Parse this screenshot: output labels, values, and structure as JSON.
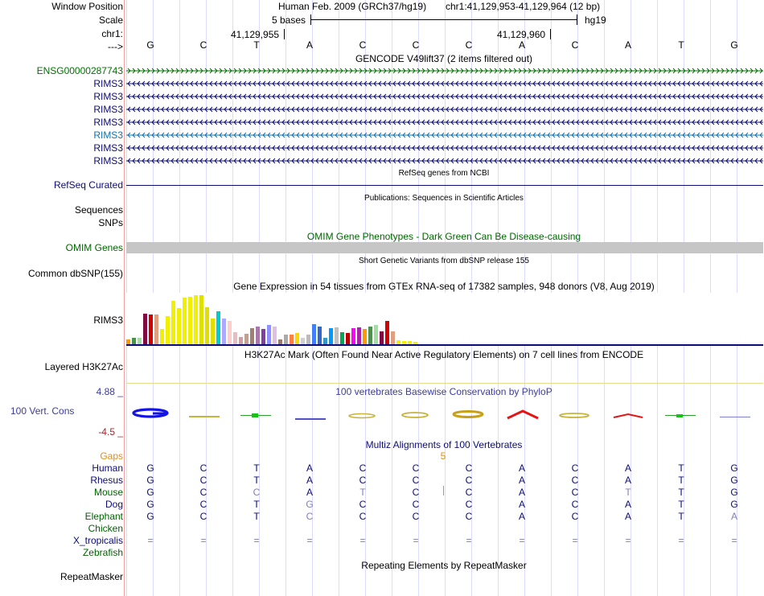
{
  "colors": {
    "label_default": "#000000",
    "gene_green": "#007300",
    "rims_navy": "#0c0c78",
    "rims_highlight": "#0c74b4",
    "refseq_navy": "#0c0c78",
    "omim_green": "#006600",
    "phylop_blue": "#3c3ca0",
    "phylop_red": "#a0282d",
    "gaps_orange": "#e68c14",
    "tissue_palette": [
      "#ff9900",
      "#4f8f4f",
      "#a0e0a0",
      "#820a42",
      "#d70000",
      "#e0a080",
      "#f0f000",
      "#f0f000",
      "#f0f000",
      "#f0f000",
      "#f0f000",
      "#f0f000",
      "#f0f000",
      "#e0e000",
      "#e0e000",
      "#e0e000",
      "#00cccc",
      "#aaaaff",
      "#ffcccc",
      "#e0c0c0",
      "#d0a0a0",
      "#c0a090",
      "#a08070",
      "#aa77aa",
      "#8040a0",
      "#9090ff",
      "#e0c0e0",
      "#9a7a6a",
      "#aaaaaa",
      "#ff8040",
      "#ffd700",
      "#d0d0d0",
      "#bbbbbb",
      "#4080ff",
      "#3366cc",
      "#3399cc",
      "#0099ff",
      "#c0c0c0",
      "#00aa55",
      "#bb0000",
      "#ff00ff",
      "#aa22aa"
    ]
  },
  "header": {
    "window_position_label": "Window Position",
    "scale_label": "Scale",
    "chr_label": "chr1:",
    "strand_label": "--->",
    "assembly_text": "Human Feb. 2009 (GRCh37/hg19)",
    "position_text": "chr1:41,129,953-41,129,964 (12 bp)",
    "scale_text": "5 bases",
    "hg19_text": "hg19",
    "coord1": "41,129,955",
    "coord2": "41,129,960",
    "sequence": [
      "G",
      "C",
      "T",
      "A",
      "C",
      "C",
      "C",
      "A",
      "C",
      "A",
      "T",
      "G"
    ]
  },
  "gencode": {
    "title": "GENCODE V49lift37 (2 items filtered out)",
    "tracks": [
      {
        "label": "ENSG00000287743",
        "strand": "+"
      },
      {
        "label": "RIMS3",
        "strand": "-"
      },
      {
        "label": "RIMS3",
        "strand": "-"
      },
      {
        "label": "RIMS3",
        "strand": "-"
      },
      {
        "label": "RIMS3",
        "strand": "-"
      },
      {
        "label": "RIMS3",
        "strand": "-",
        "highlight": true
      },
      {
        "label": "RIMS3",
        "strand": "-"
      },
      {
        "label": "RIMS3",
        "strand": "-"
      }
    ]
  },
  "refseq": {
    "title": "RefSeq genes from NCBI",
    "label": "RefSeq Curated"
  },
  "publications": {
    "title": "Publications: Sequences in Scientific Articles",
    "label1": "Sequences",
    "label2": "SNPs"
  },
  "omim": {
    "title": "OMIM Gene Phenotypes - Dark Green Can Be Disease-causing",
    "label": "OMIM Genes"
  },
  "dbsnp": {
    "title": "Short Genetic Variants from dbSNP release 155",
    "label": "Common dbSNP(155)"
  },
  "gtex": {
    "title": "Gene Expression in 54 tissues from GTEx RNA-seq of 17382 samples, 948 donors (V8, Aug 2019)",
    "label": "RIMS3",
    "bar_levels": [
      0.1,
      0.12,
      0.12,
      0.6,
      0.58,
      0.58,
      0.3,
      0.54,
      0.85,
      0.7,
      0.9,
      0.92,
      0.95,
      0.95,
      0.72,
      0.5,
      0.64,
      0.5,
      0.45,
      0.24,
      0.14,
      0.2,
      0.32,
      0.35,
      0.3,
      0.38,
      0.35,
      0.1,
      0.18,
      0.18,
      0.22,
      0.13,
      0.18,
      0.39,
      0.35,
      0.13,
      0.31,
      0.33,
      0.24,
      0.22,
      0.32,
      0.33,
      0.3,
      0.35,
      0.38,
      0.25,
      0.45,
      0.25,
      0.08,
      0.06,
      0.06,
      0.04
    ]
  },
  "h3k27ac": {
    "title": "H3K27Ac Mark (Often Found Near Active Regulatory Elements) on 7 cell lines from ENCODE",
    "label": "Layered H3K27Ac"
  },
  "phylop": {
    "title": "100 vertebrates Basewise Conservation by PhyloP",
    "label": "100 Vert. Cons",
    "max": "4.88 _",
    "min": "-4.5 _"
  },
  "multiz": {
    "title": "Multiz Alignments of 100 Vertebrates",
    "gaps_label": "Gaps",
    "gap_count": "5",
    "species": [
      {
        "name": "Human",
        "bases": [
          "G",
          "C",
          "T",
          "A",
          "C",
          "C",
          "C",
          "A",
          "C",
          "A",
          "T",
          "G"
        ],
        "color": "#0c0c78"
      },
      {
        "name": "Rhesus",
        "bases": [
          "G",
          "C",
          "T",
          "A",
          "C",
          "C",
          "C",
          "A",
          "C",
          "A",
          "T",
          "G"
        ],
        "color": "#0c0c78"
      },
      {
        "name": "Mouse",
        "bases": [
          "G",
          "C",
          "C",
          "A",
          "T",
          "C",
          "C",
          "A",
          "C",
          "T",
          "T",
          "G"
        ],
        "color": "#006400"
      },
      {
        "name": "Dog",
        "bases": [
          "G",
          "C",
          "T",
          "G",
          "C",
          "C",
          "C",
          "A",
          "C",
          "A",
          "T",
          "G"
        ],
        "color": "#0c0c78"
      },
      {
        "name": "Elephant",
        "bases": [
          "G",
          "C",
          "T",
          "C",
          "C",
          "C",
          "C",
          "A",
          "C",
          "A",
          "T",
          "A"
        ],
        "color": "#006400"
      },
      {
        "name": "Chicken",
        "bases": [
          "",
          "",
          "",
          "",
          "",
          "",
          "",
          "",
          "",
          "",
          "",
          ""
        ],
        "color": "#006400"
      },
      {
        "name": "X_tropicalis",
        "bases": [
          "=",
          "=",
          "=",
          "=",
          "=",
          "=",
          "=",
          "=",
          "=",
          "=",
          "=",
          "="
        ],
        "color": "#0c0c78"
      },
      {
        "name": "Zebrafish",
        "bases": [
          "",
          "",
          "",
          "",
          "",
          "",
          "",
          "",
          "",
          "",
          "",
          ""
        ],
        "color": "#006400"
      }
    ]
  },
  "repeatmasker": {
    "title": "Repeating Elements by RepeatMasker",
    "label": "RepeatMasker"
  }
}
